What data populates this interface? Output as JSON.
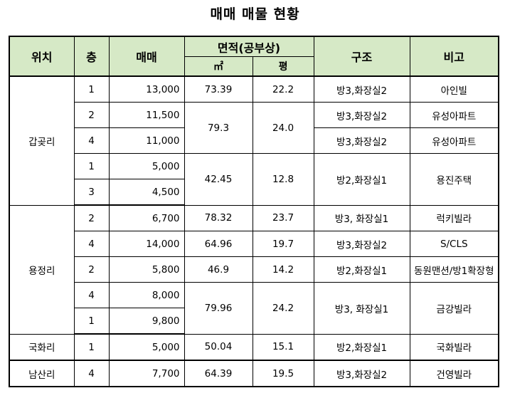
{
  "title": "매매 매물 현황",
  "headers": {
    "location": "위치",
    "floor": "층",
    "price": "매매",
    "area": "면적(공부상)",
    "area_sqm": "㎡",
    "area_pyeong": "평",
    "structure": "구조",
    "remark": "비고"
  },
  "groups": [
    {
      "location": "갑곶리",
      "rows": [
        {
          "floor": "1",
          "price": "13,000",
          "sqm": "73.39",
          "pyeong": "22.2",
          "structure": "방3,화장실2",
          "remark": "아인빌"
        },
        {
          "floor": "2",
          "price": "11,500",
          "sqm": "79.3",
          "pyeong": "24.0",
          "structure": "방3,화장실2",
          "remark": "유성아파트"
        },
        {
          "floor": "4",
          "price": "11,000",
          "structure": "방3,화장실2",
          "remark": "유성아파트"
        },
        {
          "floor": "1",
          "price": "5,000",
          "sqm": "42.45",
          "pyeong": "12.8",
          "structure": "방2,화장실1",
          "remark": "용진주택"
        },
        {
          "floor": "3",
          "price": "4,500"
        }
      ]
    },
    {
      "location": "용정리",
      "rows": [
        {
          "floor": "2",
          "price": "6,700",
          "sqm": "78.32",
          "pyeong": "23.7",
          "structure": "방3, 화장실1",
          "remark": "럭키빌라"
        },
        {
          "floor": "4",
          "price": "14,000",
          "sqm": "64.96",
          "pyeong": "19.7",
          "structure": "방3,화장실2",
          "remark": "S/CLS"
        },
        {
          "floor": "2",
          "price": "5,800",
          "sqm": "46.9",
          "pyeong": "14.2",
          "structure": "방2,화장실1",
          "remark": "동원맨션/방1확장형"
        },
        {
          "floor": "4",
          "price": "8,000",
          "sqm": "79.96",
          "pyeong": "24.2",
          "structure": "방3, 화장실1",
          "remark": "금강빌라"
        },
        {
          "floor": "1",
          "price": "9,800"
        }
      ]
    },
    {
      "location": "국화리",
      "rows": [
        {
          "floor": "1",
          "price": "5,000",
          "sqm": "50.04",
          "pyeong": "15.1",
          "structure": "방2,화장실1",
          "remark": "국화빌라"
        }
      ]
    },
    {
      "location": "남산리",
      "rows": [
        {
          "floor": "4",
          "price": "7,700",
          "sqm": "64.39",
          "pyeong": "19.5",
          "structure": "방3,화장실2",
          "remark": "건영빌라"
        }
      ]
    }
  ]
}
